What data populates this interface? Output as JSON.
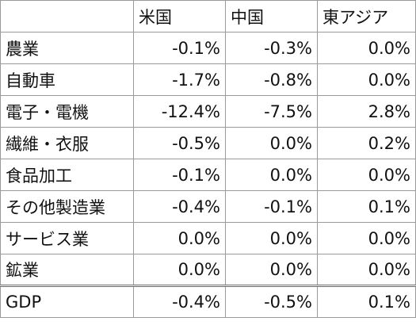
{
  "table": {
    "columns": [
      "米国",
      "中国",
      "東アジア"
    ],
    "rows": [
      [
        "農業",
        "-0.1%",
        "-0.3%",
        "0.0%"
      ],
      [
        "自動車",
        "-1.7%",
        "-0.8%",
        "0.0%"
      ],
      [
        "電子・電機",
        "-12.4%",
        "-7.5%",
        "2.8%"
      ],
      [
        "繊維・衣服",
        "-0.5%",
        "0.0%",
        "0.2%"
      ],
      [
        "食品加工",
        "-0.1%",
        "0.0%",
        "0.0%"
      ],
      [
        "その他製造業",
        "-0.4%",
        "-0.1%",
        "0.1%"
      ],
      [
        "サービス業",
        "0.0%",
        "0.0%",
        "0.0%"
      ],
      [
        "鉱業",
        "0.0%",
        "0.0%",
        "0.0%"
      ]
    ],
    "total": [
      "GDP",
      "-0.4%",
      "-0.5%",
      "0.1%"
    ]
  }
}
